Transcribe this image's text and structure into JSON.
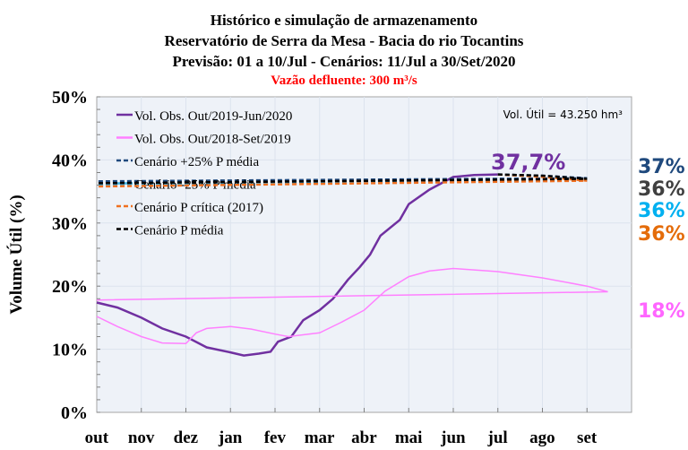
{
  "chart_data": {
    "type": "line",
    "title": [
      "Histórico e simulação de armazenamento",
      "Reservatório de Serra da Mesa - Bacia do rio Tocantins",
      "Previsão: 01 a 10/Jul - Cenários: 11/Jul a 30/Set/2020"
    ],
    "subtitle": "Vazão defluente: 300 m³/s",
    "ylabel": "Volume Útil (%)",
    "xlabel": "",
    "ylim": [
      0,
      50
    ],
    "yticks": [
      "0%",
      "10%",
      "20%",
      "30%",
      "40%",
      "50%"
    ],
    "xticks": [
      "out",
      "nov",
      "dez",
      "jan",
      "fev",
      "mar",
      "abr",
      "mai",
      "jun",
      "jul",
      "ago",
      "set"
    ],
    "grid": true,
    "legend_position": "top-left",
    "annotation_volume": "Vol. Útil  = 43.250 hm³",
    "annotation_last_obs": "37,7%",
    "series": [
      {
        "name": "Vol. Obs. Out/2019-Jun/2020",
        "color": "#7030A0",
        "dash": false,
        "points": [
          [
            "10-01",
            17.4
          ],
          [
            "10-15",
            16.6
          ],
          [
            "11-01",
            15.0
          ],
          [
            "11-15",
            13.3
          ],
          [
            "12-01",
            12.0
          ],
          [
            "12-15",
            10.3
          ],
          [
            "01-01",
            9.5
          ],
          [
            "01-10",
            9.0
          ],
          [
            "01-20",
            9.3
          ],
          [
            "01-28",
            9.6
          ],
          [
            "02-03",
            11.2
          ],
          [
            "02-12",
            12.0
          ],
          [
            "02-20",
            14.6
          ],
          [
            "03-01",
            16.2
          ],
          [
            "03-10",
            18.0
          ],
          [
            "03-20",
            21.0
          ],
          [
            "03-28",
            23.0
          ],
          [
            "04-05",
            25.0
          ],
          [
            "04-12",
            28.0
          ],
          [
            "04-25",
            30.5
          ],
          [
            "05-01",
            33.0
          ],
          [
            "05-15",
            35.3
          ],
          [
            "06-01",
            37.3
          ],
          [
            "06-15",
            37.6
          ],
          [
            "07-01",
            37.7
          ]
        ]
      },
      {
        "name": "Vol. Obs. Out/2018-Set/2019",
        "color": "#FF80FF",
        "dash": false,
        "points": [
          [
            "10-01",
            15.2
          ],
          [
            "10-15",
            13.6
          ],
          [
            "11-01",
            12.0
          ],
          [
            "11-15",
            11.0
          ],
          [
            "12-01",
            10.9
          ],
          [
            "12-08",
            12.6
          ],
          [
            "12-15",
            13.3
          ],
          [
            "01-01",
            13.6
          ],
          [
            "01-15",
            13.2
          ],
          [
            "02-01",
            12.4
          ],
          [
            "02-10",
            12.0
          ],
          [
            "03-01",
            12.6
          ],
          [
            "03-15",
            14.2
          ],
          [
            "04-01",
            16.2
          ],
          [
            "04-15",
            19.2
          ],
          [
            "05-01",
            21.5
          ],
          [
            "05-15",
            22.4
          ],
          [
            "06-01",
            22.8
          ],
          [
            "07-01",
            22.3
          ],
          [
            "08-01",
            21.3
          ],
          [
            "09-01",
            20.0
          ],
          [
            "09-15",
            19.1
          ],
          [
            "10-01",
            17.8
          ]
        ]
      },
      {
        "name": "Cenário +25% P média",
        "color": "#1F497D",
        "dash": true,
        "points": [
          [
            "07-01",
            37.7
          ],
          [
            "08-01",
            37.5
          ],
          [
            "09-01",
            37.1
          ],
          [
            "10-01",
            36.6
          ]
        ]
      },
      {
        "name": "Cenário -25% P média",
        "color": "#3BB0E0",
        "dash": true,
        "points": [
          [
            "07-01",
            37.7
          ],
          [
            "08-01",
            37.4
          ],
          [
            "09-01",
            36.8
          ],
          [
            "10-01",
            36.0
          ]
        ]
      },
      {
        "name": "Cenário P crítica (2017)",
        "color": "#F07020",
        "dash": true,
        "points": [
          [
            "07-01",
            37.7
          ],
          [
            "08-01",
            37.3
          ],
          [
            "09-01",
            36.7
          ],
          [
            "10-01",
            35.8
          ]
        ]
      },
      {
        "name": "Cenário P média",
        "color": "#000000",
        "dash": true,
        "points": [
          [
            "07-01",
            37.7
          ],
          [
            "08-01",
            37.5
          ],
          [
            "09-01",
            37.0
          ],
          [
            "10-01",
            36.3
          ]
        ]
      }
    ],
    "end_labels": [
      {
        "text": "37%",
        "color": "#1F497D"
      },
      {
        "text": "36%",
        "color": "#404040"
      },
      {
        "text": "36%",
        "color": "#00B0F0"
      },
      {
        "text": "36%",
        "color": "#E46C0A"
      },
      {
        "text": "18%",
        "color": "#FF66FF"
      }
    ]
  }
}
